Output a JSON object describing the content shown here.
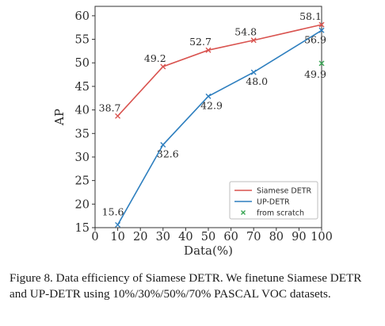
{
  "chart_data": {
    "type": "line",
    "xlabel": "Data(%)",
    "ylabel": "AP",
    "xlim": [
      0,
      100
    ],
    "ylim": [
      15,
      62
    ],
    "xticks": [
      "0",
      "10",
      "20",
      "30",
      "40",
      "50",
      "60",
      "70",
      "80",
      "90",
      "100"
    ],
    "yticks": [
      "15",
      "20",
      "25",
      "30",
      "35",
      "40",
      "45",
      "50",
      "55",
      "60"
    ],
    "grid": false,
    "legend_position": "lower-right",
    "series": [
      {
        "name": "Siamese DETR",
        "color": "#d9534f",
        "marker": "x",
        "x": [
          10,
          30,
          50,
          70,
          100
        ],
        "y": [
          38.7,
          49.2,
          52.7,
          54.8,
          58.1
        ],
        "labels": [
          "38.7",
          "49.2",
          "52.7",
          "54.8",
          "58.1"
        ]
      },
      {
        "name": "UP-DETR",
        "color": "#2e7fbf",
        "marker": "x",
        "x": [
          10,
          30,
          50,
          70,
          100
        ],
        "y": [
          15.6,
          32.6,
          42.9,
          48.0,
          56.9
        ],
        "labels": [
          "15.6",
          "32.6",
          "42.9",
          "48.0",
          "56.9"
        ]
      },
      {
        "name": "from scratch",
        "color": "#3aa655",
        "marker": "x",
        "x": [
          100
        ],
        "y": [
          49.9
        ],
        "labels": [
          "49.9"
        ]
      }
    ]
  },
  "caption": "Figure 8. Data efficiency of Siamese DETR. We finetune Siamese DETR and UP-DETR using 10%/30%/50%/70% PASCAL VOC datasets."
}
